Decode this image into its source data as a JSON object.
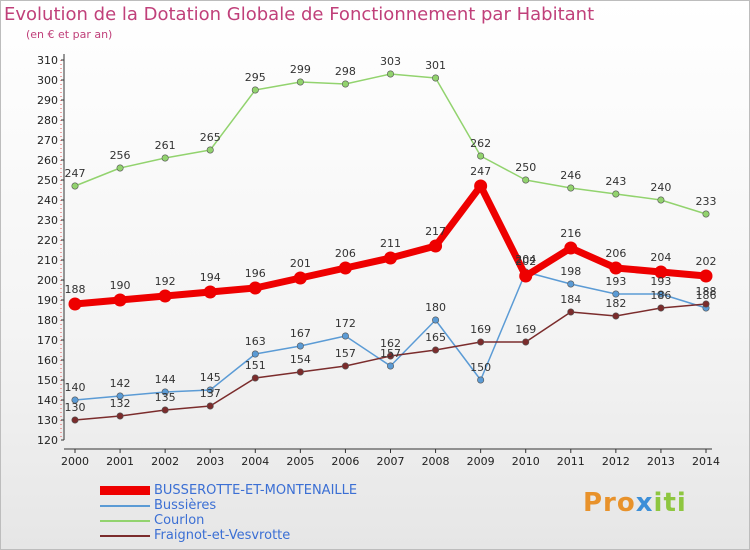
{
  "chart_data": {
    "type": "line",
    "title": "Evolution de la Dotation Globale de Fonctionnement par Habitant",
    "subtitle": "(en € et par an)",
    "xlabel": "",
    "ylabel": "",
    "ylim": [
      120,
      310
    ],
    "ystep": 10,
    "grid": false,
    "legend_position": "bottom-left",
    "x": [
      "2000",
      "2001",
      "2002",
      "2003",
      "2004",
      "2005",
      "2006",
      "2007",
      "2008",
      "2009",
      "2010",
      "2011",
      "2012",
      "2013",
      "2014"
    ],
    "series": [
      {
        "name": "BUSSEROTTE-ET-MONTENAILLE",
        "color": "#ee0000",
        "width": "thick",
        "values": [
          188,
          190,
          192,
          194,
          196,
          201,
          206,
          211,
          217,
          247,
          202,
          216,
          206,
          204,
          202
        ]
      },
      {
        "name": "Bussières",
        "color": "#5b9bd5",
        "width": "thin",
        "values": [
          140,
          142,
          144,
          145,
          163,
          167,
          172,
          157,
          180,
          150,
          204,
          198,
          193,
          193,
          186
        ]
      },
      {
        "name": "Courlon",
        "color": "#92d36e",
        "width": "thin",
        "values": [
          247,
          256,
          261,
          265,
          295,
          299,
          298,
          303,
          301,
          262,
          250,
          246,
          243,
          240,
          233
        ]
      },
      {
        "name": "Fraignot-et-Vesvrotte",
        "color": "#7b2c2c",
        "width": "thin",
        "values": [
          130,
          132,
          135,
          137,
          151,
          154,
          157,
          162,
          165,
          169,
          169,
          184,
          182,
          186,
          188
        ]
      }
    ]
  },
  "logo": {
    "part1": "Pro",
    "part2": "x",
    "part3": "iti"
  }
}
